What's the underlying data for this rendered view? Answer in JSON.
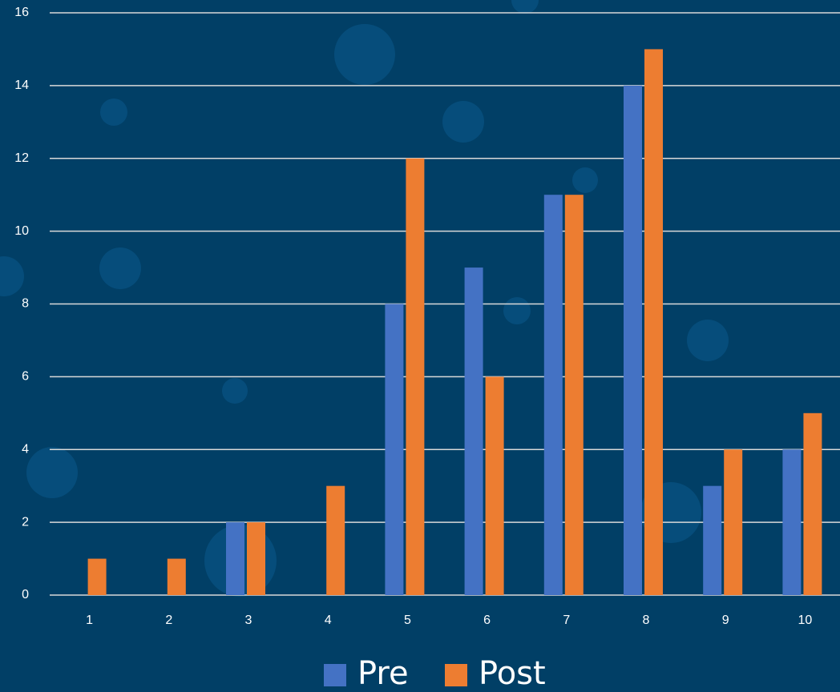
{
  "chart_data": {
    "type": "grouped-bar",
    "categories": [
      "1",
      "2",
      "3",
      "4",
      "5",
      "6",
      "7",
      "8",
      "9",
      "10"
    ],
    "series": [
      {
        "name": "Pre",
        "color": "#4472c4",
        "values": [
          0,
          0,
          2,
          0,
          8,
          9,
          11,
          14,
          3,
          4
        ]
      },
      {
        "name": "Post",
        "color": "#ed7d31",
        "values": [
          1,
          1,
          2,
          3,
          12,
          6,
          11,
          15,
          4,
          5
        ]
      }
    ],
    "ylim": [
      0,
      16
    ],
    "yticks": [
      0,
      2,
      4,
      6,
      8,
      10,
      12,
      14,
      16
    ],
    "grid": true,
    "legend": "bottom"
  }
}
